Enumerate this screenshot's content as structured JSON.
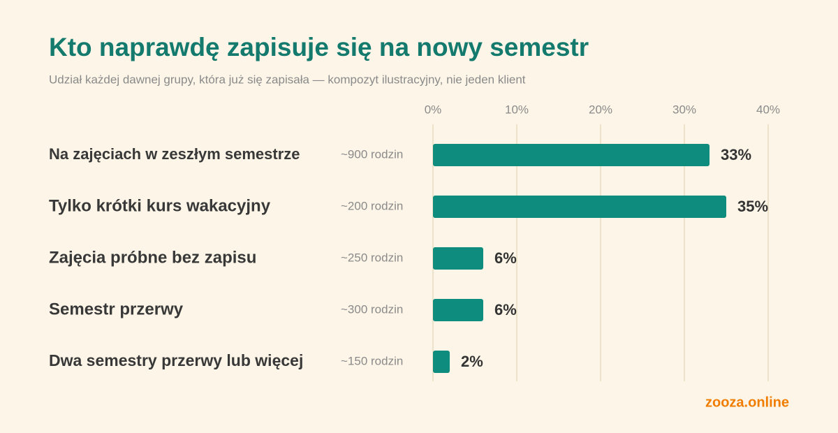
{
  "chart_data": {
    "type": "bar",
    "orientation": "horizontal",
    "title": "Kto naprawdę zapisuje się na nowy semestr",
    "subtitle": "Udział każdej dawnej grupy, która już się zapisała — kompozyt ilustracyjny, nie jeden klient",
    "categories": [
      "Na zajęciach w zeszłym semestrze",
      "Tylko krótki kurs wakacyjny",
      "Zajęcia próbne bez zapisu",
      "Semestr przerwy",
      "Dwa semestry przerwy lub więcej"
    ],
    "annotations": [
      "~900 rodzin",
      "~200 rodzin",
      "~250 rodzin",
      "~300 rodzin",
      "~150 rodzin"
    ],
    "values": [
      33,
      35,
      6,
      6,
      2
    ],
    "value_labels": [
      "33%",
      "35%",
      "6%",
      "6%",
      "2%"
    ],
    "color": "#0e8c7e",
    "xlim": [
      0,
      40
    ],
    "xticks": [
      {
        "value": 0,
        "label": "0%"
      },
      {
        "value": 10,
        "label": "10%"
      },
      {
        "value": 20,
        "label": "20%"
      },
      {
        "value": 30,
        "label": "30%"
      },
      {
        "value": 40,
        "label": "40%"
      }
    ],
    "grid": true
  },
  "footer": {
    "brand": "zooza.online"
  }
}
